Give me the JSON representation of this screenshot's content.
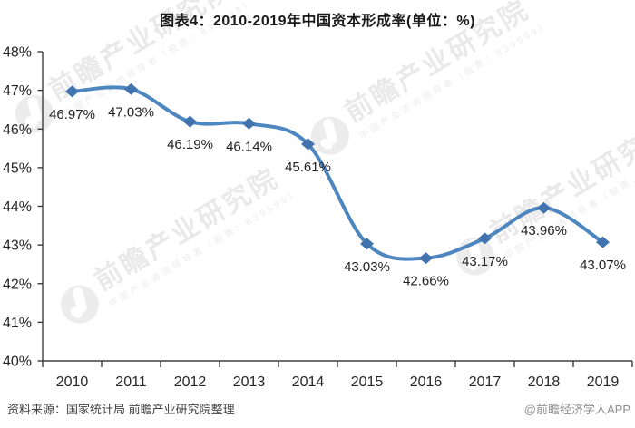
{
  "title": "图表4：2010-2019年中国资本形成率(单位：%)",
  "chart_data": {
    "type": "line",
    "title": "图表4：2010-2019年中国资本形成率(单位：%)",
    "categories": [
      "2010",
      "2011",
      "2012",
      "2013",
      "2014",
      "2015",
      "2016",
      "2017",
      "2018",
      "2019"
    ],
    "series": [
      {
        "name": "中国资本形成率",
        "values": [
          46.97,
          47.03,
          46.19,
          46.14,
          45.61,
          43.03,
          42.66,
          43.17,
          43.96,
          43.07
        ]
      }
    ],
    "point_labels": [
      "46.97%",
      "47.03%",
      "46.19%",
      "46.14%",
      "45.61%",
      "43.03%",
      "42.66%",
      "43.17%",
      "43.96%",
      "43.07%"
    ],
    "ylim": [
      40,
      48
    ],
    "ytick_labels": [
      "40%",
      "41%",
      "42%",
      "43%",
      "44%",
      "45%",
      "46%",
      "47%",
      "48%"
    ],
    "xlabel": "",
    "ylabel": "",
    "grid": false,
    "legend": "none",
    "smooth": true,
    "marker": "diamond",
    "line_color": "#4e86c0",
    "marker_color": "#4173ae",
    "axis_color": "#3f3f3f"
  },
  "watermark": {
    "logo": "qianzhan-logo",
    "text": "前瞻产业研究院",
    "subtext": "中国产业咨询领导者（股票：839599）"
  },
  "footer": {
    "source": "资料来源：国家统计局 前瞻产业研究院整理",
    "credit": "@前瞻经济学人APP"
  }
}
